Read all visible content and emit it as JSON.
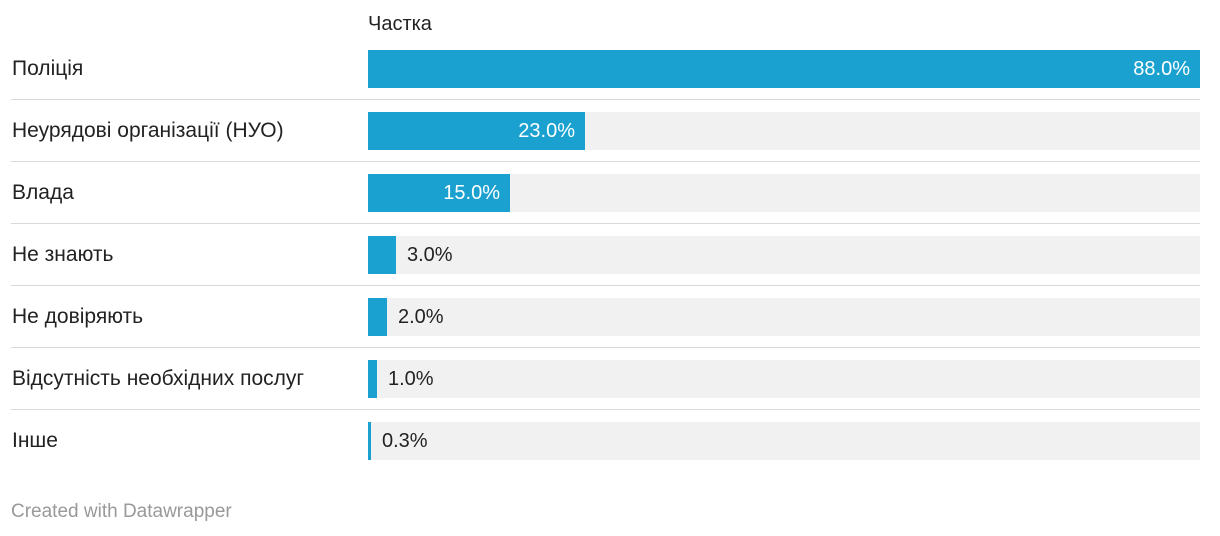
{
  "chart_data": {
    "type": "bar",
    "orientation": "horizontal",
    "column_header": "Частка",
    "categories": [
      "Поліція",
      "Неурядові організації (НУО)",
      "Влада",
      "Не знають",
      "Не довіряють",
      "Відсутність необхідних послуг",
      "Інше"
    ],
    "values": [
      88.0,
      23.0,
      15.0,
      3.0,
      2.0,
      1.0,
      0.3
    ],
    "value_labels": [
      "88.0%",
      "23.0%",
      "15.0%",
      "3.0%",
      "2.0%",
      "1.0%",
      "0.3%"
    ],
    "unit": "%",
    "xlim": [
      0,
      88
    ],
    "colors": {
      "bar": "#1aa1d0",
      "track": "#f1f1f1"
    }
  },
  "footer": {
    "credit": "Created with Datawrapper"
  }
}
